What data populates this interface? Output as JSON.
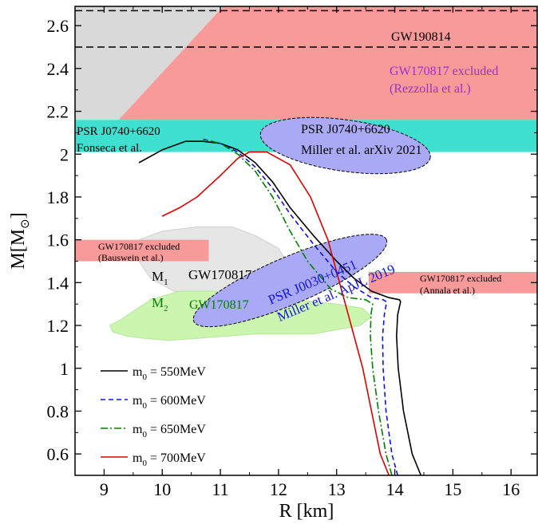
{
  "chart_data": {
    "type": "line",
    "xlabel": "R [km]",
    "ylabel": {
      "main": "M[M",
      "sub": "⊙",
      "close": "]"
    },
    "xlim": [
      8.5,
      16.45
    ],
    "ylim": [
      0.5,
      2.69
    ],
    "xticks": [
      9,
      10,
      11,
      12,
      13,
      14,
      15,
      16
    ],
    "yticks": [
      0.6,
      0.8,
      1,
      1.2,
      1.4,
      1.6,
      1.8,
      2,
      2.2,
      2.4,
      2.6
    ],
    "xtick_labels": [
      "9",
      "10",
      "11",
      "12",
      "13",
      "14",
      "15",
      "16"
    ],
    "ytick_labels": [
      "0.6",
      "0.8",
      "1",
      "1.2",
      "1.4",
      "1.6",
      "1.8",
      "2",
      "2.2",
      "2.4",
      "2.6"
    ],
    "grid": false,
    "legend_placement": "bottom-left",
    "colors": {
      "gray_region": "#d9d9d9",
      "pink_region": "#f8999a",
      "teal_band": "#40e0d0",
      "blue_ellipse": "#a9a9f5",
      "gw_m1_region": "#e6e6e6",
      "gw_m2_region": "#ccf5b0",
      "purple_text": "#9932cc",
      "blue_text": "#1515e0",
      "green_text": "#008000"
    },
    "series": [
      {
        "name": "m_0 = 550MeV",
        "label_main": "m",
        "label_sub": "0",
        "label_rest": " = 550MeV",
        "color": "#000000",
        "dash": "solid",
        "x": [
          14.45,
          14.3,
          14.15,
          14.06,
          14.03,
          14.05,
          14.1,
          14.08,
          13.9,
          13.6,
          13.3,
          13.0,
          12.6,
          12.2,
          11.9,
          11.6,
          11.3,
          11.0,
          10.7,
          10.4,
          10.0,
          9.6
        ],
        "y": [
          0.5,
          0.6,
          0.8,
          1.0,
          1.15,
          1.25,
          1.31,
          1.32,
          1.33,
          1.36,
          1.42,
          1.5,
          1.62,
          1.75,
          1.87,
          1.96,
          2.02,
          2.05,
          2.06,
          2.06,
          2.02,
          1.96
        ]
      },
      {
        "name": "m_0 = 600MeV",
        "label_main": "m",
        "label_sub": "0",
        "label_rest": " = 600MeV",
        "color": "#1010e0",
        "dash": "dashed",
        "x": [
          14.05,
          13.95,
          13.85,
          13.8,
          13.79,
          13.82,
          13.86,
          13.8,
          13.6,
          13.3,
          13.0,
          12.6,
          12.2,
          11.9,
          11.6,
          11.3,
          11.0,
          10.7
        ],
        "y": [
          0.5,
          0.6,
          0.8,
          1.0,
          1.15,
          1.25,
          1.31,
          1.32,
          1.33,
          1.38,
          1.45,
          1.58,
          1.72,
          1.84,
          1.94,
          2.01,
          2.05,
          2.07
        ]
      },
      {
        "name": "m_0 = 650MeV",
        "label_main": "m",
        "label_sub": "0",
        "label_rest": " = 650MeV",
        "color": "#008000",
        "dash": "dashdot",
        "x": [
          13.95,
          13.85,
          13.72,
          13.62,
          13.58,
          13.59,
          13.62,
          13.5,
          13.2,
          12.9,
          12.5,
          12.2,
          11.9,
          11.6,
          11.3,
          11.0,
          10.7
        ],
        "y": [
          0.5,
          0.6,
          0.8,
          1.0,
          1.15,
          1.25,
          1.3,
          1.32,
          1.33,
          1.37,
          1.5,
          1.64,
          1.8,
          1.92,
          2.0,
          2.05,
          2.07
        ]
      },
      {
        "name": "m_0 = 700MeV",
        "label_main": "m",
        "label_sub": "0",
        "label_rest": " = 700MeV",
        "color": "#e00000",
        "dash": "solid",
        "x": [
          13.9,
          13.75,
          13.6,
          13.45,
          13.3,
          13.2,
          13.05,
          12.85,
          12.55,
          12.2,
          11.8,
          11.5,
          11.3,
          11.0,
          10.6,
          10.3,
          10.0
        ],
        "y": [
          0.5,
          0.6,
          0.8,
          1.0,
          1.15,
          1.25,
          1.4,
          1.6,
          1.8,
          1.95,
          2.01,
          2.01,
          1.98,
          1.9,
          1.8,
          1.75,
          1.71
        ]
      }
    ],
    "regions": {
      "gw170817_m1": {
        "points": [
          [
            9.6,
            1.6
          ],
          [
            10.0,
            1.64
          ],
          [
            10.6,
            1.66
          ],
          [
            11.2,
            1.66
          ],
          [
            11.6,
            1.62
          ],
          [
            12.0,
            1.56
          ],
          [
            12.2,
            1.47
          ],
          [
            12.0,
            1.39
          ],
          [
            11.4,
            1.36
          ],
          [
            10.8,
            1.34
          ],
          [
            10.2,
            1.36
          ],
          [
            9.8,
            1.42
          ],
          [
            9.6,
            1.5
          ]
        ]
      },
      "gw170817_m2": {
        "points": [
          [
            9.1,
            1.2
          ],
          [
            9.3,
            1.23
          ],
          [
            9.8,
            1.32
          ],
          [
            10.3,
            1.36
          ],
          [
            10.9,
            1.36
          ],
          [
            11.6,
            1.34
          ],
          [
            12.3,
            1.32
          ],
          [
            13.0,
            1.3
          ],
          [
            13.45,
            1.28
          ],
          [
            13.6,
            1.24
          ],
          [
            13.4,
            1.2
          ],
          [
            12.6,
            1.16
          ],
          [
            11.6,
            1.16
          ],
          [
            10.6,
            1.14
          ],
          [
            10.1,
            1.13
          ],
          [
            9.7,
            1.14
          ],
          [
            9.4,
            1.15
          ],
          [
            9.15,
            1.17
          ]
        ]
      },
      "miller_2021": {
        "cx": 13.15,
        "cy": 2.04,
        "rx_km": 2.95,
        "ry_mass": 0.12,
        "tilt_deg": 8
      },
      "miller_2019": {
        "cx": 12.2,
        "cy": 1.41,
        "rx_km": 3.6,
        "ry_mass": 0.11,
        "tilt_deg": -23
      },
      "teal_band": [
        2.01,
        2.16
      ],
      "rezzolla_upper": [
        2.16,
        2.69
      ],
      "bauswein": {
        "x": [
          8.5,
          10.8
        ],
        "y": [
          1.5,
          1.6
        ]
      },
      "annala": {
        "x": [
          13.55,
          16.45
        ],
        "y": [
          1.35,
          1.45
        ]
      },
      "gw190814_lines": [
        2.5,
        2.67
      ]
    },
    "annotations": {
      "gw190814": "GW190814",
      "gw170817_rezzolla_1": "GW170817 excluded",
      "gw170817_rezzolla_2": "(Rezzolla et al.)",
      "psr_fonseca_1": "PSR J0740+6620",
      "psr_fonseca_2": "Fonseca et al.",
      "psr_miller_2021_1": "PSR J0740+6620",
      "psr_miller_2021_2": "Miller et al. arXiv 2021",
      "bauswein_1": "GW170817 excluded",
      "bauswein_2": "(Bauswein et al.)",
      "annala_1": "GW170817 excluded",
      "annala_2": "(Annala et al.)",
      "m1_main": "M",
      "m1_sub": "1",
      "m1_event": "GW170817",
      "m2_main": "M",
      "m2_sub": "2",
      "m2_event": "GW170817",
      "psr_miller_2019_1": "PSR J0030+0451",
      "psr_miller_2019_2": "Miller et al. ApJL 2019"
    }
  }
}
